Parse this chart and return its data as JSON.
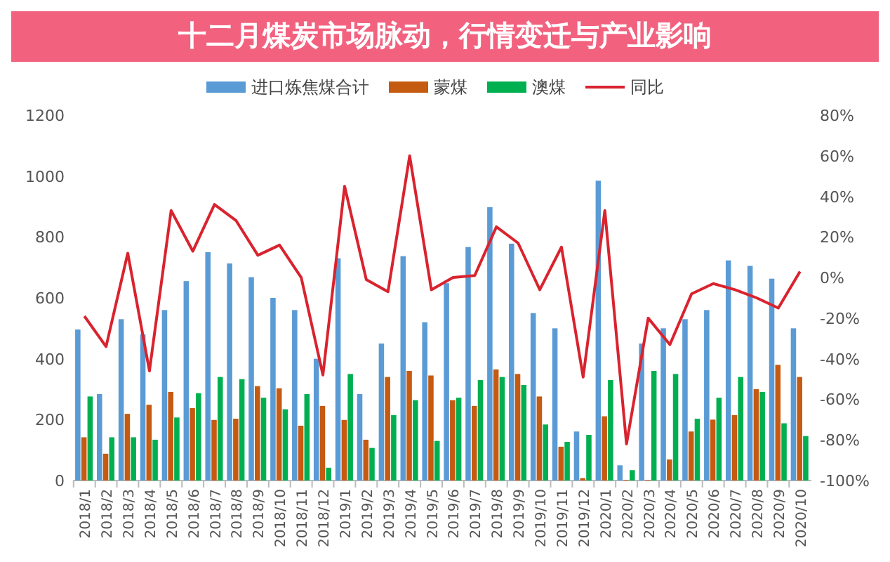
{
  "chart_data": {
    "type": "bar",
    "title": "十二月煤炭市场脉动，行情变迁与产业影响",
    "categories": [
      "2018/1",
      "2018/2",
      "2018/3",
      "2018/4",
      "2018/5",
      "2018/6",
      "2018/7",
      "2018/8",
      "2018/9",
      "2018/10",
      "2018/11",
      "2018/12",
      "2019/1",
      "2019/2",
      "2019/3",
      "2019/4",
      "2019/5",
      "2019/6",
      "2019/7",
      "2019/8",
      "2019/9",
      "2019/10",
      "2019/11",
      "2019/12",
      "2020/1",
      "2020/2",
      "2020/3",
      "2020/4",
      "2020/5",
      "2020/6",
      "2020/7",
      "2020/8",
      "2020/9",
      "2020/10"
    ],
    "series": [
      {
        "name": "进口炼焦煤合计",
        "color": "#5b9bd5",
        "values": [
          496,
          284,
          530,
          480,
          560,
          655,
          750,
          713,
          668,
          600,
          560,
          400,
          730,
          284,
          450,
          737,
          520,
          648,
          767,
          898,
          778,
          550,
          500,
          161,
          985,
          50,
          450,
          500,
          530,
          560,
          723,
          705,
          663,
          500
        ]
      },
      {
        "name": "蒙煤",
        "color": "#c55a11",
        "values": [
          142,
          88,
          219,
          249,
          291,
          238,
          199,
          203,
          310,
          303,
          180,
          245,
          199,
          134,
          340,
          360,
          345,
          264,
          245,
          365,
          350,
          276,
          111,
          8,
          211,
          2,
          2,
          69,
          161,
          200,
          215,
          300,
          380,
          340
        ]
      },
      {
        "name": "澳煤",
        "color": "#00b050",
        "values": [
          276,
          142,
          142,
          134,
          207,
          287,
          340,
          333,
          272,
          234,
          284,
          42,
          350,
          107,
          215,
          264,
          130,
          272,
          330,
          340,
          314,
          184,
          127,
          150,
          330,
          34,
          360,
          350,
          203,
          272,
          340,
          291,
          188,
          146
        ]
      },
      {
        "name": "同比",
        "type": "line",
        "axis": "y2",
        "color": "#d9232e",
        "values": [
          -19,
          -34,
          12,
          -46,
          33,
          13,
          36,
          28,
          11,
          16,
          0,
          -48,
          45,
          -1,
          -7,
          60,
          -6,
          0,
          1,
          25,
          17,
          -6,
          15,
          -49,
          33,
          -82,
          -20,
          -33,
          -8,
          -3,
          -6,
          -10,
          -15,
          3
        ]
      }
    ],
    "ylim": [
      0,
      1200
    ],
    "yticks": [
      0,
      200,
      400,
      600,
      800,
      1000,
      1200
    ],
    "y2lim": [
      -100,
      80
    ],
    "y2ticks": [
      {
        "value": -100,
        "label": "-100%"
      },
      {
        "value": -80,
        "label": "-80%"
      },
      {
        "value": -60,
        "label": "-60%"
      },
      {
        "value": -40,
        "label": "-40%"
      },
      {
        "value": -20,
        "label": "-20%"
      },
      {
        "value": 0,
        "label": "0%"
      },
      {
        "value": 20,
        "label": "20%"
      },
      {
        "value": 40,
        "label": "40%"
      },
      {
        "value": 60,
        "label": "60%"
      },
      {
        "value": 80,
        "label": "80%"
      }
    ],
    "legend": "top",
    "marker": "none",
    "line_style": "solid"
  }
}
